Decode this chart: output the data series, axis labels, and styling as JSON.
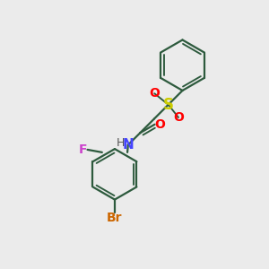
{
  "background_color": "#ebebeb",
  "line_color": "#2d5a3d",
  "line_width": 1.6,
  "S_color": "#cccc00",
  "O_color": "#ff0000",
  "N_color": "#4444ff",
  "F_color": "#cc44cc",
  "Br_color": "#cc6600",
  "H_color": "#555555",
  "font_size": 10,
  "fig_width": 3.0,
  "fig_height": 3.0,
  "dpi": 100,
  "xlim": [
    0,
    10
  ],
  "ylim": [
    0,
    10
  ]
}
